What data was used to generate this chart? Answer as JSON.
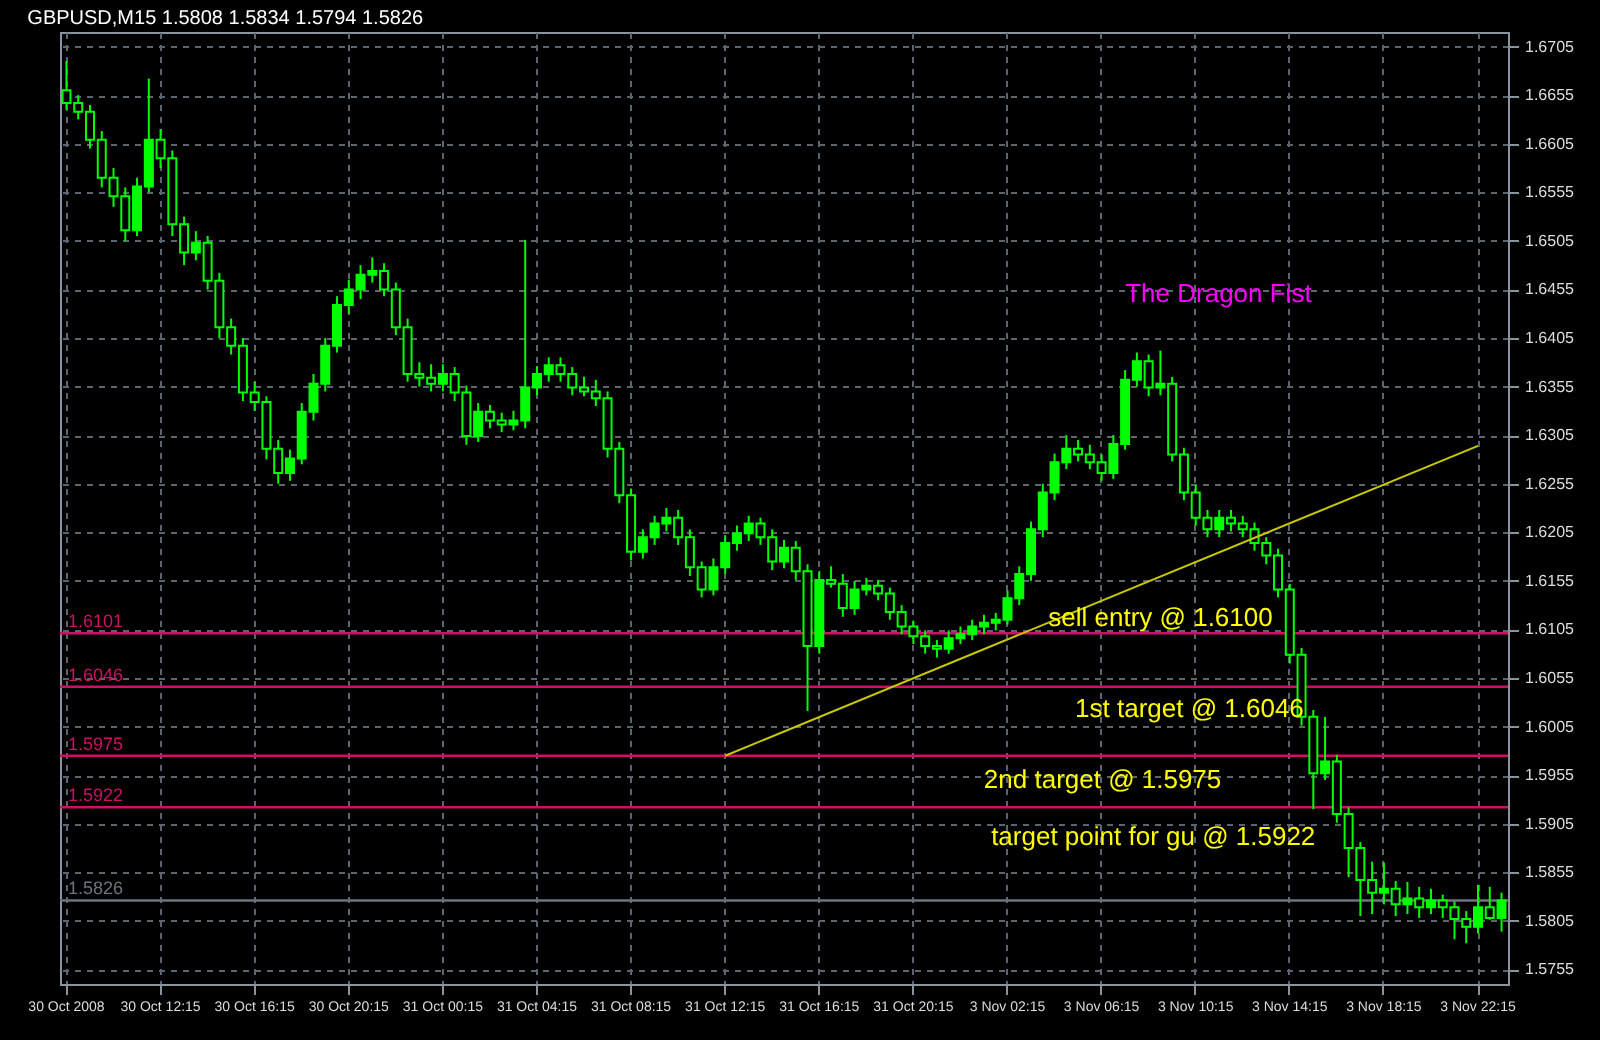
{
  "chart_data": {
    "type": "candlestick",
    "title": "GBPUSD,M15  1.5808 1.5834 1.5794 1.5826",
    "categories": [
      "30 Oct 2008",
      null,
      null,
      null,
      null,
      null,
      null,
      null,
      "30 Oct 12:15",
      null,
      null,
      null,
      null,
      null,
      null,
      null,
      "30 Oct 16:15",
      null,
      null,
      null,
      null,
      null,
      null,
      null,
      "30 Oct 20:15",
      null,
      null,
      null,
      null,
      null,
      null,
      null,
      "31 Oct 00:15",
      null,
      null,
      null,
      null,
      null,
      null,
      null,
      "31 Oct 04:15",
      null,
      null,
      null,
      null,
      null,
      null,
      null,
      "31 Oct 08:15",
      null,
      null,
      null,
      null,
      null,
      null,
      null,
      "31 Oct 12:15",
      null,
      null,
      null,
      null,
      null,
      null,
      null,
      "31 Oct 16:15",
      null,
      null,
      null,
      null,
      null,
      null,
      null,
      "31 Oct 20:15",
      null,
      null,
      null,
      null,
      null,
      null,
      null,
      "3 Nov 02:15",
      null,
      null,
      null,
      null,
      null,
      null,
      null,
      "3 Nov 06:15",
      null,
      null,
      null,
      null,
      null,
      null,
      null,
      "3 Nov 10:15",
      null,
      null,
      null,
      null,
      null,
      null,
      null,
      "3 Nov 14:15",
      null,
      null,
      null,
      null,
      null,
      null,
      null,
      "3 Nov 18:15",
      null,
      null,
      null,
      null,
      null,
      null,
      null,
      "3 Nov 22:15",
      null,
      null
    ],
    "series": [
      {
        "type": "candlestick",
        "color": "#00ff00",
        "ohlc": [
          [
            1.666,
            1.669,
            1.664,
            1.6647
          ],
          [
            1.6647,
            1.6655,
            1.663,
            1.6638
          ],
          [
            1.6638,
            1.6645,
            1.66,
            1.6609
          ],
          [
            1.6609,
            1.6618,
            1.656,
            1.657
          ],
          [
            1.657,
            1.658,
            1.654,
            1.6551
          ],
          [
            1.6551,
            1.656,
            1.6505,
            1.6516
          ],
          [
            1.6516,
            1.657,
            1.651,
            1.6561
          ],
          [
            1.6561,
            1.6672,
            1.6555,
            1.6609
          ],
          [
            1.6609,
            1.662,
            1.658,
            1.659
          ],
          [
            1.659,
            1.6598,
            1.651,
            1.6522
          ],
          [
            1.6522,
            1.653,
            1.648,
            1.6493
          ],
          [
            1.6493,
            1.6515,
            1.6485,
            1.6503
          ],
          [
            1.6503,
            1.651,
            1.6455,
            1.6464
          ],
          [
            1.6464,
            1.6472,
            1.6405,
            1.6416
          ],
          [
            1.6416,
            1.6425,
            1.6388,
            1.6397
          ],
          [
            1.6397,
            1.6405,
            1.634,
            1.6349
          ],
          [
            1.6349,
            1.636,
            1.633,
            1.6339
          ],
          [
            1.6339,
            1.6345,
            1.628,
            1.6291
          ],
          [
            1.6291,
            1.63,
            1.6255,
            1.6266
          ],
          [
            1.6266,
            1.629,
            1.6258,
            1.6281
          ],
          [
            1.6281,
            1.6338,
            1.6275,
            1.6329
          ],
          [
            1.6329,
            1.6368,
            1.632,
            1.6358
          ],
          [
            1.6358,
            1.6405,
            1.635,
            1.6397
          ],
          [
            1.6397,
            1.6448,
            1.639,
            1.6439
          ],
          [
            1.6439,
            1.6465,
            1.643,
            1.6455
          ],
          [
            1.6455,
            1.648,
            1.6445,
            1.647
          ],
          [
            1.647,
            1.6488,
            1.6462,
            1.6474
          ],
          [
            1.6474,
            1.6482,
            1.6448,
            1.6455
          ],
          [
            1.6455,
            1.6462,
            1.6408,
            1.6416
          ],
          [
            1.6416,
            1.6425,
            1.636,
            1.6368
          ],
          [
            1.6368,
            1.638,
            1.6355,
            1.6364
          ],
          [
            1.6364,
            1.6378,
            1.635,
            1.6358
          ],
          [
            1.6358,
            1.6378,
            1.635,
            1.6368
          ],
          [
            1.6368,
            1.6375,
            1.634,
            1.6349
          ],
          [
            1.6349,
            1.6356,
            1.6295,
            1.6304
          ],
          [
            1.6304,
            1.6338,
            1.6298,
            1.6329
          ],
          [
            1.6329,
            1.6336,
            1.6312,
            1.632
          ],
          [
            1.632,
            1.6328,
            1.6308,
            1.6316
          ],
          [
            1.6316,
            1.633,
            1.631,
            1.632
          ],
          [
            1.632,
            1.6506,
            1.6312,
            1.6354
          ],
          [
            1.6354,
            1.6376,
            1.6346,
            1.6368
          ],
          [
            1.6368,
            1.6385,
            1.636,
            1.6377
          ],
          [
            1.6377,
            1.6385,
            1.636,
            1.6368
          ],
          [
            1.6368,
            1.6375,
            1.6346,
            1.6354
          ],
          [
            1.6354,
            1.6365,
            1.6345,
            1.635
          ],
          [
            1.635,
            1.6362,
            1.6335,
            1.6343
          ],
          [
            1.6343,
            1.635,
            1.6282,
            1.6291
          ],
          [
            1.6291,
            1.6298,
            1.6235,
            1.6243
          ],
          [
            1.6243,
            1.625,
            1.6176,
            1.6185
          ],
          [
            1.6185,
            1.6208,
            1.6178,
            1.62
          ],
          [
            1.62,
            1.6222,
            1.6192,
            1.6214
          ],
          [
            1.6214,
            1.623,
            1.6206,
            1.622
          ],
          [
            1.622,
            1.6228,
            1.6192,
            1.62
          ],
          [
            1.62,
            1.6208,
            1.616,
            1.6169
          ],
          [
            1.6169,
            1.6175,
            1.6138,
            1.6146
          ],
          [
            1.6146,
            1.6178,
            1.614,
            1.6169
          ],
          [
            1.6169,
            1.6202,
            1.6162,
            1.6194
          ],
          [
            1.6194,
            1.6212,
            1.6186,
            1.6204
          ],
          [
            1.6204,
            1.6222,
            1.6196,
            1.6214
          ],
          [
            1.6214,
            1.622,
            1.6192,
            1.62
          ],
          [
            1.62,
            1.6208,
            1.6166,
            1.6175
          ],
          [
            1.6175,
            1.6197,
            1.6168,
            1.6189
          ],
          [
            1.6189,
            1.6196,
            1.6156,
            1.6165
          ],
          [
            1.6165,
            1.6172,
            1.6021,
            1.6088
          ],
          [
            1.6088,
            1.6165,
            1.608,
            1.6156
          ],
          [
            1.6156,
            1.617,
            1.6148,
            1.6152
          ],
          [
            1.6152,
            1.6162,
            1.6118,
            1.6127
          ],
          [
            1.6127,
            1.6155,
            1.612,
            1.6146
          ],
          [
            1.6146,
            1.6158,
            1.614,
            1.615
          ],
          [
            1.615,
            1.6156,
            1.6135,
            1.6142
          ],
          [
            1.6142,
            1.6148,
            1.6115,
            1.6123
          ],
          [
            1.6123,
            1.613,
            1.61,
            1.6108
          ],
          [
            1.6108,
            1.6114,
            1.609,
            1.6098
          ],
          [
            1.6098,
            1.6104,
            1.608,
            1.6088
          ],
          [
            1.6088,
            1.6094,
            1.6076,
            1.6085
          ],
          [
            1.6085,
            1.6104,
            1.608,
            1.6096
          ],
          [
            1.6096,
            1.6108,
            1.609,
            1.61
          ],
          [
            1.61,
            1.6115,
            1.6094,
            1.6108
          ],
          [
            1.6108,
            1.612,
            1.61,
            1.6112
          ],
          [
            1.6112,
            1.6122,
            1.6104,
            1.6115
          ],
          [
            1.6115,
            1.6145,
            1.611,
            1.6137
          ],
          [
            1.6137,
            1.617,
            1.613,
            1.6162
          ],
          [
            1.6162,
            1.6216,
            1.6155,
            1.6208
          ],
          [
            1.6208,
            1.6255,
            1.62,
            1.6246
          ],
          [
            1.6246,
            1.6286,
            1.6238,
            1.6277
          ],
          [
            1.6277,
            1.6305,
            1.627,
            1.6291
          ],
          [
            1.6291,
            1.63,
            1.6278,
            1.6285
          ],
          [
            1.6285,
            1.6295,
            1.627,
            1.6277
          ],
          [
            1.6277,
            1.6285,
            1.6258,
            1.6266
          ],
          [
            1.6266,
            1.6305,
            1.626,
            1.6296
          ],
          [
            1.6296,
            1.6372,
            1.629,
            1.6362
          ],
          [
            1.6362,
            1.639,
            1.6355,
            1.6381
          ],
          [
            1.6381,
            1.6388,
            1.6345,
            1.6354
          ],
          [
            1.6354,
            1.6392,
            1.6346,
            1.6358
          ],
          [
            1.6358,
            1.6365,
            1.6278,
            1.6285
          ],
          [
            1.6285,
            1.6292,
            1.6238,
            1.6246
          ],
          [
            1.6246,
            1.6254,
            1.6212,
            1.622
          ],
          [
            1.622,
            1.6228,
            1.62,
            1.6208
          ],
          [
            1.6208,
            1.6228,
            1.62,
            1.622
          ],
          [
            1.622,
            1.6228,
            1.6206,
            1.6214
          ],
          [
            1.6214,
            1.6222,
            1.62,
            1.6208
          ],
          [
            1.6208,
            1.6215,
            1.6186,
            1.6194
          ],
          [
            1.6194,
            1.62,
            1.6172,
            1.6181
          ],
          [
            1.6181,
            1.6188,
            1.6138,
            1.6146
          ],
          [
            1.6146,
            1.6152,
            1.607,
            1.6079
          ],
          [
            1.6079,
            1.6086,
            1.6006,
            1.6015
          ],
          [
            1.6015,
            1.6022,
            1.592,
            1.5957
          ],
          [
            1.5957,
            1.6015,
            1.595,
            1.5969
          ],
          [
            1.5969,
            1.5976,
            1.5906,
            1.5915
          ],
          [
            1.5915,
            1.5922,
            1.585,
            1.588
          ],
          [
            1.588,
            1.5886,
            1.581,
            1.5847
          ],
          [
            1.5847,
            1.5866,
            1.5812,
            1.5834
          ],
          [
            1.5834,
            1.5865,
            1.5822,
            1.5838
          ],
          [
            1.5838,
            1.5846,
            1.581,
            1.5822
          ],
          [
            1.5822,
            1.5845,
            1.5812,
            1.5828
          ],
          [
            1.5828,
            1.584,
            1.5808,
            1.5819
          ],
          [
            1.5819,
            1.5838,
            1.5812,
            1.5826
          ],
          [
            1.5826,
            1.5832,
            1.5808,
            1.5819
          ],
          [
            1.5819,
            1.5825,
            1.5786,
            1.5807
          ],
          [
            1.5807,
            1.5815,
            1.5782,
            1.5799
          ],
          [
            1.5799,
            1.5842,
            1.5792,
            1.5819
          ],
          [
            1.5819,
            1.584,
            1.5806,
            1.5808
          ],
          [
            1.5808,
            1.5834,
            1.5794,
            1.5826
          ]
        ]
      },
      {
        "type": "line",
        "color": "#c8c800",
        "x": [
          "31 Oct 12:15",
          "3 Nov 22:15"
        ],
        "values": [
          1.5975,
          1.6294
        ]
      }
    ],
    "ylim": [
      1.574,
      1.672
    ],
    "yticks": [
      1.5755,
      1.5805,
      1.5855,
      1.5905,
      1.5955,
      1.6005,
      1.6055,
      1.6105,
      1.6155,
      1.6205,
      1.6255,
      1.6305,
      1.6355,
      1.6405,
      1.6455,
      1.6505,
      1.6555,
      1.6605,
      1.6655,
      1.6705
    ],
    "grid": true,
    "ref_lines": [
      {
        "axis": "y",
        "value": 1.6101,
        "label": "1.6101",
        "color": "#cc1166"
      },
      {
        "axis": "y",
        "value": 1.6046,
        "label": "1.6046",
        "color": "#cc1166"
      },
      {
        "axis": "y",
        "value": 1.5975,
        "label": "1.5975",
        "color": "#cc1166"
      },
      {
        "axis": "y",
        "value": 1.5922,
        "label": "1.5922",
        "color": "#cc1166"
      },
      {
        "axis": "y",
        "value": 1.5826,
        "label": "1.5826",
        "color": "#6a7580"
      }
    ],
    "annotations": [
      "The Dragon Fist",
      {
        "text": "sell entry @ 1.6100",
        "y": 1.61
      },
      {
        "text": "1st target @ 1.6046",
        "y": 1.6046
      },
      {
        "text": "2nd target @ 1.5975",
        "y": 1.5975
      },
      {
        "text": "target point for gu @ 1.5922",
        "y": 1.5922
      }
    ]
  }
}
